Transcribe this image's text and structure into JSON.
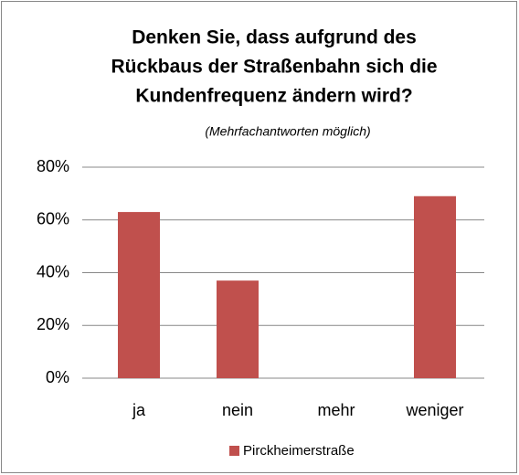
{
  "chart_data": {
    "type": "bar",
    "title": [
      "Denken Sie, dass aufgrund des",
      "Rückbaus der Straßenbahn sich die",
      "Kundenfrequenz ändern wird?"
    ],
    "subtitle": "(Mehrfachantworten möglich)",
    "categories": [
      "ja",
      "nein",
      "mehr",
      "weniger"
    ],
    "series": [
      {
        "name": "Pirckheimerstraße",
        "color": "#c0504d",
        "values": [
          63,
          37,
          0,
          69
        ]
      }
    ],
    "ylim": [
      0,
      80
    ],
    "yticks": [
      {
        "value": 0,
        "label": "0%"
      },
      {
        "value": 20,
        "label": "20%"
      },
      {
        "value": 40,
        "label": "40%"
      },
      {
        "value": 60,
        "label": "60%"
      },
      {
        "value": 80,
        "label": "80%"
      }
    ],
    "grid": true,
    "legend": "bottom"
  }
}
